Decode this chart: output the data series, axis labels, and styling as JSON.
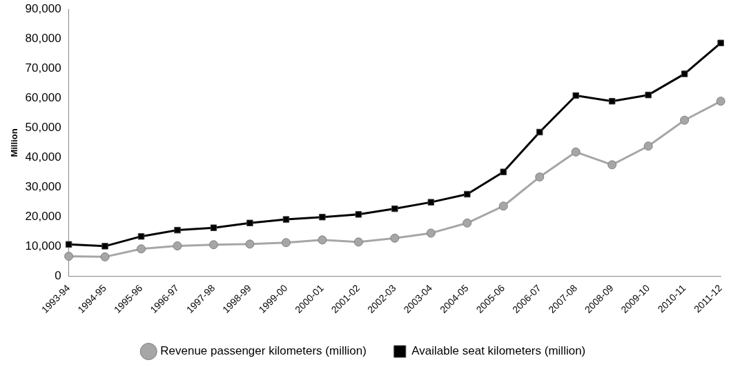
{
  "chart_data": {
    "type": "line",
    "ylabel": "Million",
    "categories": [
      "1993-94",
      "1994-95",
      "1995-96",
      "1996-97",
      "1997-98",
      "1998-99",
      "1999-00",
      "2000-01",
      "2001-02",
      "2002-03",
      "2003-04",
      "2004-05",
      "2005-06",
      "2006-07",
      "2007-08",
      "2008-09",
      "2009-10",
      "2010-11",
      "2011-12"
    ],
    "series": [
      {
        "name": "Revenue passenger kilometers (million)",
        "color": "#a6a6a6",
        "marker": "circle",
        "values": [
          6800,
          6600,
          9300,
          10300,
          10700,
          10900,
          11400,
          12300,
          11600,
          12900,
          14600,
          18000,
          23700,
          33500,
          41900,
          37600,
          43900,
          52600,
          59000
        ]
      },
      {
        "name": "Available seat kilometers (million)",
        "color": "#000000",
        "marker": "square",
        "values": [
          10800,
          10200,
          13500,
          15600,
          16400,
          18000,
          19200,
          20000,
          20900,
          22800,
          25000,
          27700,
          35200,
          48600,
          60900,
          59000,
          61100,
          68200,
          78600
        ]
      }
    ],
    "ylim": [
      0,
      90000
    ],
    "yticks": [
      0,
      {
        "value": 10000,
        "label": "10,000"
      },
      {
        "value": 20000,
        "label": "20,000"
      },
      {
        "value": 30000,
        "label": "30,000"
      },
      {
        "value": 40000,
        "label": "40,000"
      },
      {
        "value": 50000,
        "label": "50,000"
      },
      {
        "value": 60000,
        "label": "60,000"
      },
      {
        "value": 70000,
        "label": "70,000"
      },
      {
        "value": 80000,
        "label": "80,000"
      },
      {
        "value": 90000,
        "label": "90,000"
      }
    ],
    "grid": false,
    "legend": "bottom",
    "line_style": "solid"
  }
}
